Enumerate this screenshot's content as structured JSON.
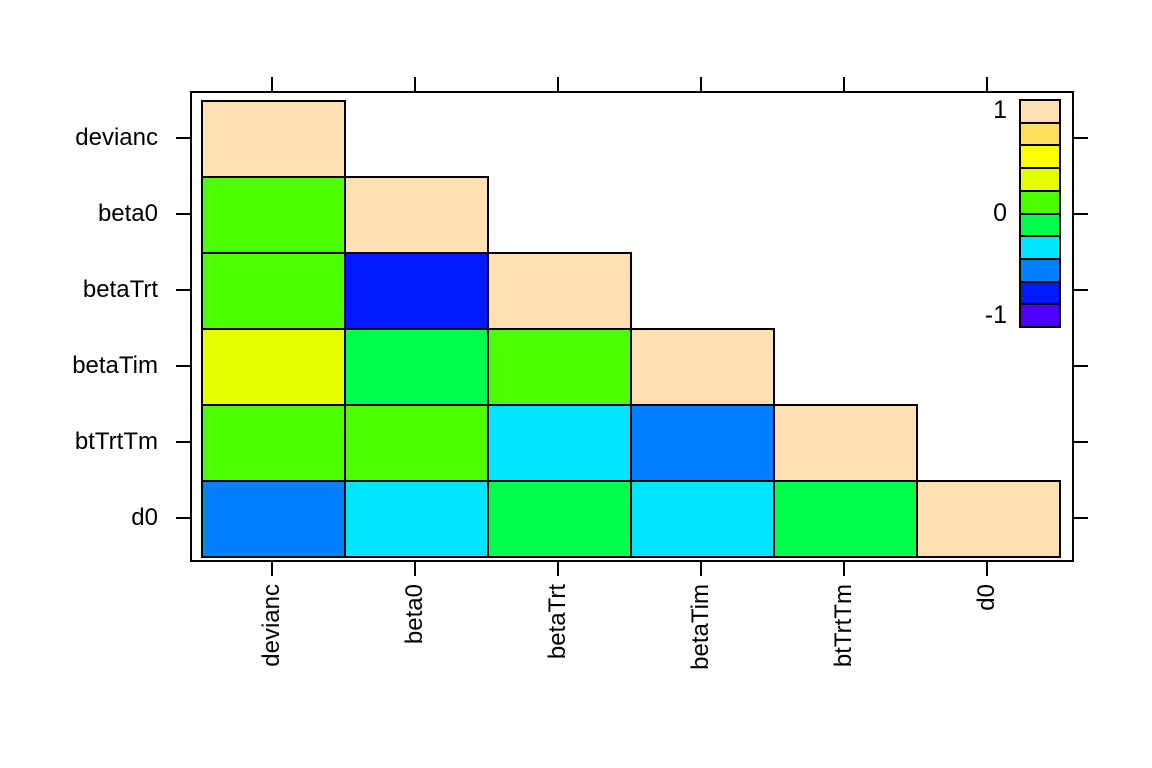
{
  "chart_data": {
    "type": "heatmap",
    "title": "",
    "description": "Lower-triangular cross-correlation matrix plot of MCMC parameters",
    "variables": [
      "devianc",
      "beta0",
      "betaTrt",
      "betaTim",
      "btTrtTm",
      "d0"
    ],
    "xlabel": "",
    "ylabel": "",
    "value_range": [
      -1,
      1
    ],
    "lower_triangle": {
      "colors": [
        [
          "#FFE0B3"
        ],
        [
          "#4DFF00",
          "#FFE0B3"
        ],
        [
          "#4DFF00",
          "#0019FF",
          "#FFE0B3"
        ],
        [
          "#E6FF00",
          "#00FF4D",
          "#4DFF00",
          "#FFE0B3"
        ],
        [
          "#4DFF00",
          "#4DFF00",
          "#00E5FF",
          "#0080FF",
          "#FFE0B3"
        ],
        [
          "#0080FF",
          "#00E5FF",
          "#00FF4D",
          "#00E5FF",
          "#00FF4D",
          "#FFE0B3"
        ]
      ],
      "estimated_values": [
        [
          1.0
        ],
        [
          0.1,
          1.0
        ],
        [
          0.1,
          -0.7,
          1.0
        ],
        [
          0.3,
          -0.1,
          0.1,
          1.0
        ],
        [
          0.1,
          0.1,
          -0.3,
          -0.5,
          1.0
        ],
        [
          -0.5,
          -0.3,
          -0.1,
          -0.3,
          -0.1,
          1.0
        ]
      ]
    },
    "legend": {
      "colors_top_to_bottom": [
        "#FFE0B3",
        "#FFDE59",
        "#FFFF00",
        "#E6FF00",
        "#4DFF00",
        "#00FF4D",
        "#00E5FF",
        "#0080FF",
        "#0019FF",
        "#4C00FF"
      ],
      "tick_labels": [
        "1",
        "0",
        "-1"
      ],
      "tick_positions": [
        0.05,
        0.5,
        0.95
      ],
      "position": "top-right inside plot"
    },
    "layout_hints": {
      "grid": "off",
      "cell_border_color": "#000000",
      "background": "#ffffff",
      "x_tick_label_rotation_deg": -90,
      "ticks": "cell centers on all four sides"
    }
  }
}
